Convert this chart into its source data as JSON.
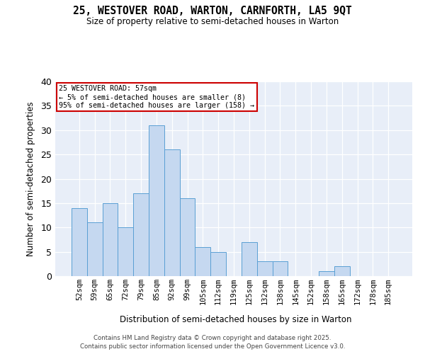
{
  "title1": "25, WESTOVER ROAD, WARTON, CARNFORTH, LA5 9QT",
  "title2": "Size of property relative to semi-detached houses in Warton",
  "xlabel": "Distribution of semi-detached houses by size in Warton",
  "ylabel": "Number of semi-detached properties",
  "categories": [
    "52sqm",
    "59sqm",
    "65sqm",
    "72sqm",
    "79sqm",
    "85sqm",
    "92sqm",
    "99sqm",
    "105sqm",
    "112sqm",
    "119sqm",
    "125sqm",
    "132sqm",
    "138sqm",
    "145sqm",
    "152sqm",
    "158sqm",
    "165sqm",
    "172sqm",
    "178sqm",
    "185sqm"
  ],
  "values": [
    14,
    11,
    15,
    10,
    17,
    31,
    26,
    16,
    6,
    5,
    0,
    7,
    3,
    3,
    0,
    0,
    1,
    2,
    0,
    0,
    0
  ],
  "bar_color": "#c5d8f0",
  "bar_edge_color": "#5a9fd4",
  "annotation_title": "25 WESTOVER ROAD: 57sqm",
  "annotation_line2": "← 5% of semi-detached houses are smaller (8)",
  "annotation_line3": "95% of semi-detached houses are larger (158) →",
  "annotation_box_color": "#ffffff",
  "annotation_box_edge": "#cc0000",
  "footer1": "Contains HM Land Registry data © Crown copyright and database right 2025.",
  "footer2": "Contains public sector information licensed under the Open Government Licence v3.0.",
  "ylim": [
    0,
    40
  ],
  "yticks": [
    0,
    5,
    10,
    15,
    20,
    25,
    30,
    35,
    40
  ],
  "bg_color": "#e8eef8",
  "highlight_bar_index": 0
}
